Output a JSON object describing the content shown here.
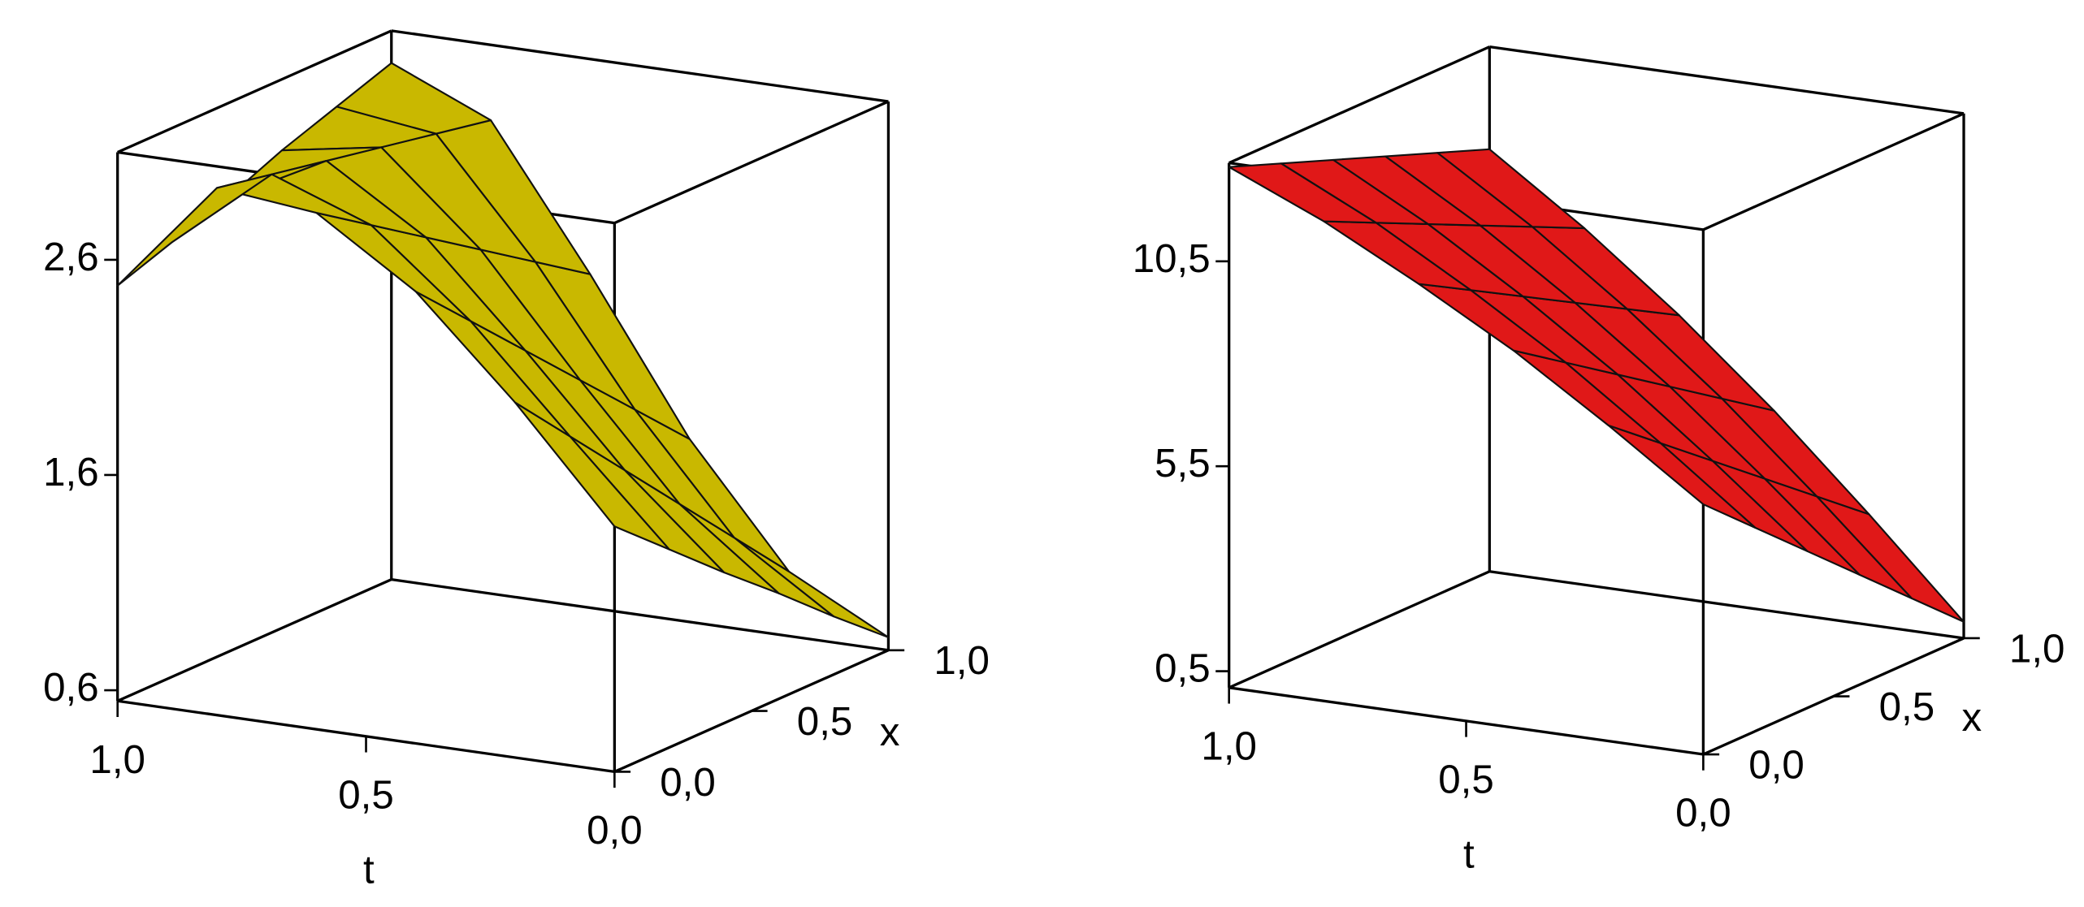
{
  "chart_data": [
    {
      "type": "surface",
      "color": "#c9b800",
      "tlabel": "t",
      "xlabel": "x",
      "t": [
        0,
        0.2,
        0.4,
        0.6,
        0.8,
        1.0
      ],
      "x": [
        0,
        0.2,
        0.4,
        0.6,
        0.8,
        1.0
      ],
      "z": [
        [
          1.69,
          2.2,
          2.65,
          2.95,
          3.0,
          2.48
        ],
        [
          1.47,
          1.93,
          2.4,
          2.78,
          2.95,
          2.57
        ],
        [
          1.25,
          1.66,
          2.15,
          2.61,
          2.9,
          2.66
        ],
        [
          1.04,
          1.39,
          1.9,
          2.44,
          2.85,
          2.77
        ],
        [
          0.82,
          1.12,
          1.65,
          2.27,
          2.8,
          2.86
        ],
        [
          0.61,
          0.85,
          1.4,
          2.1,
          2.75,
          2.95
        ]
      ],
      "tlim": [
        0,
        1
      ],
      "xlim": [
        0,
        1
      ],
      "zlim": [
        0.55,
        3.1
      ],
      "tticks": [
        {
          "value": 0,
          "label": "0,0"
        },
        {
          "value": 0.5,
          "label": "0,5"
        },
        {
          "value": 1,
          "label": "1,0"
        }
      ],
      "xticks": [
        {
          "value": 0,
          "label": "0,0"
        },
        {
          "value": 0.5,
          "label": "0,5"
        },
        {
          "value": 1,
          "label": "1,0"
        }
      ],
      "zticks": [
        {
          "value": 0.6,
          "label": "0,6"
        },
        {
          "value": 1.6,
          "label": "1,6"
        },
        {
          "value": 2.6,
          "label": "2,6"
        }
      ]
    },
    {
      "type": "surface",
      "color": "#e01818",
      "tlabel": "t",
      "xlabel": "x",
      "t": [
        0,
        0.2,
        0.4,
        0.6,
        0.8,
        1.0
      ],
      "x": [
        0,
        0.2,
        0.4,
        0.6,
        0.8,
        1.0
      ],
      "z": [
        [
          6.2,
          7.8,
          9.3,
          10.6,
          11.8,
          12.8
        ],
        [
          5.06,
          6.8,
          8.44,
          9.88,
          11.2,
          12.32
        ],
        [
          3.92,
          5.8,
          7.58,
          9.16,
          10.6,
          11.84
        ],
        [
          2.78,
          4.8,
          6.72,
          8.44,
          10.0,
          11.36
        ],
        [
          1.64,
          3.8,
          5.86,
          7.72,
          9.4,
          10.88
        ],
        [
          0.5,
          2.8,
          5.0,
          7.0,
          8.8,
          10.4
        ]
      ],
      "tlim": [
        0,
        1
      ],
      "xlim": [
        0,
        1
      ],
      "zlim": [
        0.1,
        12.9
      ],
      "tticks": [
        {
          "value": 0,
          "label": "0,0"
        },
        {
          "value": 0.5,
          "label": "0,5"
        },
        {
          "value": 1,
          "label": "1,0"
        }
      ],
      "xticks": [
        {
          "value": 0,
          "label": "0,0"
        },
        {
          "value": 0.5,
          "label": "0,5"
        },
        {
          "value": 1,
          "label": "1,0"
        }
      ],
      "zticks": [
        {
          "value": 0.5,
          "label": "0,5"
        },
        {
          "value": 5.5,
          "label": "5,5"
        },
        {
          "value": 10.5,
          "label": "10,5"
        }
      ]
    }
  ]
}
